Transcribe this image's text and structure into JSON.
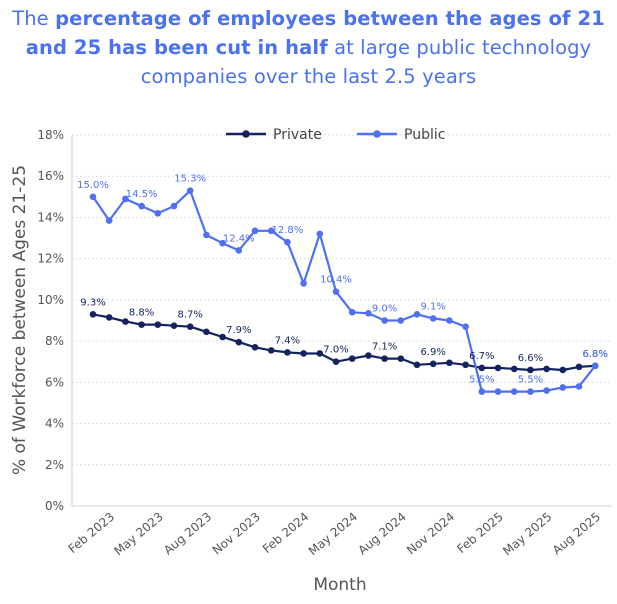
{
  "title": {
    "pre": "The ",
    "bold": "percentage of employees between the ages of 21 and 25 has been cut in half",
    "post": " at large public technology companies over the last 2.5 years"
  },
  "chart_data": {
    "type": "line",
    "xlabel": "Month",
    "ylabel": "% of Workforce between Ages 21-25",
    "ylim": [
      0,
      18
    ],
    "yticks": [
      0,
      2,
      4,
      6,
      8,
      10,
      12,
      14,
      16,
      18
    ],
    "ytick_labels": [
      "0%",
      "2%",
      "4%",
      "6%",
      "8%",
      "10%",
      "12%",
      "14%",
      "16%",
      "18%"
    ],
    "x": [
      "Jan 2023",
      "Feb 2023",
      "Mar 2023",
      "Apr 2023",
      "May 2023",
      "Jun 2023",
      "Jul 2023",
      "Aug 2023",
      "Sep 2023",
      "Oct 2023",
      "Nov 2023",
      "Dec 2023",
      "Jan 2024",
      "Feb 2024",
      "Mar 2024",
      "Apr 2024",
      "May 2024",
      "Jun 2024",
      "Jul 2024",
      "Aug 2024",
      "Sep 2024",
      "Oct 2024",
      "Nov 2024",
      "Dec 2024",
      "Jan 2025",
      "Feb 2025",
      "Mar 2025",
      "Apr 2025",
      "May 2025",
      "Jun 2025",
      "Jul 2025",
      "Aug 2025"
    ],
    "xtick_labels": [
      "Feb 2023",
      "May 2023",
      "Aug 2023",
      "Nov 2023",
      "Feb 2024",
      "May 2024",
      "Aug 2024",
      "Nov 2024",
      "Feb 2025",
      "May 2025",
      "Aug 2025"
    ],
    "xtick_index": [
      1,
      4,
      7,
      10,
      13,
      16,
      19,
      22,
      25,
      28,
      31
    ],
    "legend": "top-center",
    "grid": "horizontal dotted",
    "series": [
      {
        "name": "Private",
        "color": "#13235e",
        "values": [
          9.3,
          9.15,
          8.95,
          8.8,
          8.8,
          8.75,
          8.7,
          8.45,
          8.2,
          7.95,
          7.7,
          7.55,
          7.45,
          7.4,
          7.4,
          7.0,
          7.15,
          7.3,
          7.15,
          7.15,
          6.85,
          6.9,
          6.95,
          6.85,
          6.7,
          6.7,
          6.65,
          6.6,
          6.65,
          6.6,
          6.75,
          6.8
        ],
        "labels": [
          {
            "i": 0,
            "text": "9.3%"
          },
          {
            "i": 3,
            "text": "8.8%"
          },
          {
            "i": 6,
            "text": "8.7%"
          },
          {
            "i": 9,
            "text": "7.9%"
          },
          {
            "i": 12,
            "text": "7.4%"
          },
          {
            "i": 15,
            "text": "7.0%"
          },
          {
            "i": 18,
            "text": "7.1%"
          },
          {
            "i": 21,
            "text": "6.9%"
          },
          {
            "i": 24,
            "text": "6.7%"
          },
          {
            "i": 27,
            "text": "6.6%"
          },
          {
            "i": 31,
            "text": "6.8%"
          }
        ]
      },
      {
        "name": "Public",
        "color": "#4f6ff5",
        "values": [
          15.0,
          13.85,
          14.9,
          14.55,
          14.2,
          14.55,
          15.3,
          13.15,
          12.75,
          12.4,
          13.35,
          13.35,
          12.8,
          10.8,
          13.2,
          10.4,
          9.4,
          9.35,
          9.0,
          9.0,
          9.3,
          9.1,
          9.0,
          8.7,
          5.55,
          5.55,
          5.55,
          5.55,
          5.6,
          5.75,
          5.8,
          6.8
        ],
        "labels": [
          {
            "i": 0,
            "text": "15.0%"
          },
          {
            "i": 3,
            "text": "14.5%"
          },
          {
            "i": 6,
            "text": "15.3%"
          },
          {
            "i": 9,
            "text": "12.4%"
          },
          {
            "i": 12,
            "text": "12.8%"
          },
          {
            "i": 15,
            "text": "10.4%"
          },
          {
            "i": 18,
            "text": "9.0%"
          },
          {
            "i": 21,
            "text": "9.1%"
          },
          {
            "i": 24,
            "text": "5.5%"
          },
          {
            "i": 27,
            "text": "5.5%"
          },
          {
            "i": 31,
            "text": "6.8%"
          }
        ]
      }
    ]
  }
}
